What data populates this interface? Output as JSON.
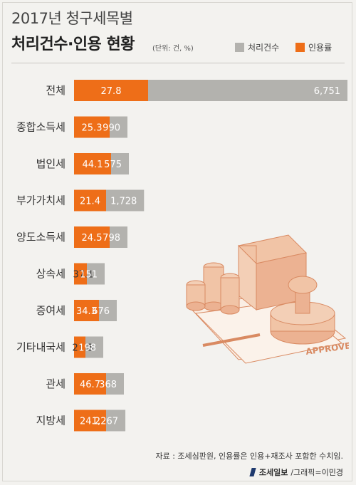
{
  "header": {
    "title_line1": "2017년 청구세목별",
    "title_line2": "처리건수·인용 현황",
    "unit": "(단위: 건, %)"
  },
  "legend": [
    {
      "label": "처리건수",
      "color": "#b3b2ae"
    },
    {
      "label": "인용률",
      "color": "#ee6e18"
    }
  ],
  "chart_data": {
    "type": "bar",
    "orientation": "horizontal",
    "categories": [
      "전체",
      "종합소득세",
      "법인세",
      "부가가치세",
      "양도소득세",
      "상속세",
      "증여세",
      "기타내국세",
      "관세",
      "지방세"
    ],
    "series": [
      {
        "name": "처리건수",
        "values": [
          6751,
          990,
          575,
          1728,
          798,
          151,
          676,
          198,
          368,
          1267
        ],
        "labels": [
          "6,751",
          "990",
          "575",
          "1,728",
          "798",
          "151",
          "676",
          "198",
          "368",
          "1,267"
        ]
      },
      {
        "name": "인용률",
        "values": [
          27.8,
          25.3,
          44.1,
          21.4,
          24.5,
          37.1,
          34.3,
          21.8,
          46.7,
          24.2
        ],
        "labels": [
          "27.8",
          "25.3",
          "44.1",
          "21.4",
          "24.5",
          "37.1",
          "34.3",
          "21.8",
          "46.7",
          "24.2"
        ]
      }
    ],
    "grid": false,
    "legend_position": "top-right"
  },
  "footer": {
    "source": "자료 : 조세심판원, 인용률은 인용+재조사 포함한 수치임.",
    "brand": "조세일보",
    "credit": "/그래픽=이민경"
  },
  "colors": {
    "count_bar": "#b3b2ae",
    "rate_bar": "#ee6e18",
    "illustration": "#e8a27b"
  },
  "icons": [
    "money-stack-illustration",
    "approved-stamp-illustration"
  ]
}
